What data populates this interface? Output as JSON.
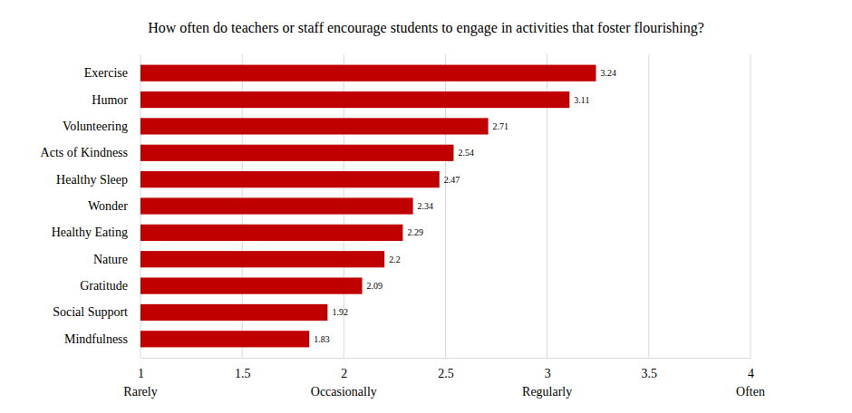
{
  "chart_data": {
    "type": "bar",
    "title": "How often do teachers or staff encourage students to engage in activities that foster flourishing?",
    "orientation": "horizontal",
    "categories": [
      "Exercise",
      "Humor",
      "Volunteering",
      "Acts of Kindness",
      "Healthy Sleep",
      "Wonder",
      "Healthy Eating",
      "Nature",
      "Gratitude",
      "Social Support",
      "Mindfulness"
    ],
    "values": [
      3.24,
      3.11,
      2.71,
      2.54,
      2.47,
      2.34,
      2.29,
      2.2,
      2.09,
      1.92,
      1.83
    ],
    "color": "#c00000",
    "xlim": [
      1,
      4
    ],
    "xticks": [
      1,
      1.5,
      2,
      2.5,
      3,
      3.5,
      4
    ],
    "annotations": [
      {
        "text": "Rarely",
        "x": 1
      },
      {
        "text": "Occasionally",
        "x": 2
      },
      {
        "text": "Regularly",
        "x": 3
      },
      {
        "text": "Often",
        "x": 4
      }
    ],
    "grid": true,
    "data_labels": true
  }
}
